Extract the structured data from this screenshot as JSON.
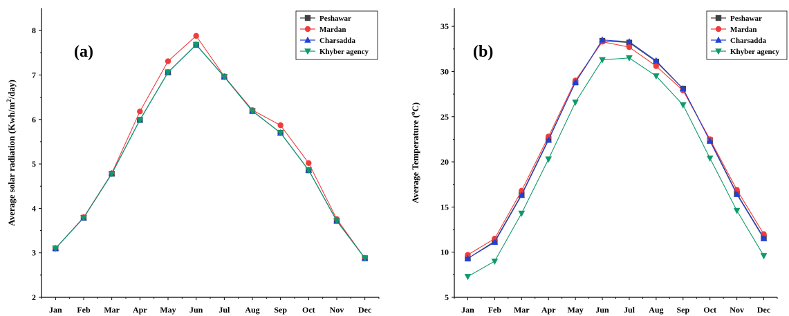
{
  "chart_data": [
    {
      "type": "line",
      "panel_label": "(a)",
      "title": "",
      "xlabel": "",
      "ylabel_prefix": "Average solar radiation (Kwh/m",
      "ylabel_sup": "2",
      "ylabel_suffix": "/day)",
      "categories": [
        "Jan",
        "Feb",
        "Mar",
        "Apr",
        "May",
        "Jun",
        "Jul",
        "Aug",
        "Sep",
        "Oct",
        "Nov",
        "Dec"
      ],
      "ylim": [
        2,
        8.5
      ],
      "yticks": [
        2,
        3,
        4,
        5,
        6,
        7,
        8
      ],
      "legend_position": "top-right",
      "series": [
        {
          "name": "Peshawar",
          "color": "#404040",
          "marker": "square",
          "values": [
            3.1,
            3.79,
            4.78,
            5.99,
            7.06,
            7.68,
            6.96,
            6.19,
            5.7,
            4.86,
            3.72,
            2.88
          ]
        },
        {
          "name": "Mardan",
          "color": "#f03c3c",
          "marker": "circle",
          "values": [
            3.1,
            3.8,
            4.79,
            6.18,
            7.31,
            7.88,
            6.97,
            6.21,
            5.87,
            5.02,
            3.76,
            2.88
          ]
        },
        {
          "name": "Charsadda",
          "color": "#2140d6",
          "marker": "triangle-up",
          "values": [
            3.1,
            3.79,
            4.78,
            5.99,
            7.06,
            7.68,
            6.96,
            6.19,
            5.7,
            4.86,
            3.72,
            2.88
          ]
        },
        {
          "name": "Khyber agency",
          "color": "#0e9a6a",
          "marker": "triangle-down",
          "values": [
            3.1,
            3.79,
            4.78,
            5.99,
            7.06,
            7.68,
            6.96,
            6.19,
            5.7,
            4.86,
            3.72,
            2.88
          ]
        }
      ]
    },
    {
      "type": "line",
      "panel_label": "(b)",
      "title": "",
      "xlabel": "",
      "ylabel_prefix": "Average Temperature (",
      "ylabel_sup": "o",
      "ylabel_suffix": "C)",
      "categories": [
        "Jan",
        "Feb",
        "Mar",
        "Apr",
        "May",
        "Jun",
        "Jul",
        "Aug",
        "Sep",
        "Oct",
        "Nov",
        "Dec"
      ],
      "ylim": [
        5,
        37
      ],
      "yticks": [
        5,
        10,
        15,
        20,
        25,
        30,
        35
      ],
      "legend_position": "top-right",
      "series": [
        {
          "name": "Peshawar",
          "color": "#404040",
          "marker": "square",
          "values": [
            9.3,
            11.2,
            16.4,
            22.5,
            28.8,
            33.4,
            33.2,
            31.1,
            28.1,
            22.4,
            16.5,
            11.6
          ]
        },
        {
          "name": "Mardan",
          "color": "#f03c3c",
          "marker": "circle",
          "values": [
            9.7,
            11.5,
            16.8,
            22.8,
            29.0,
            33.3,
            32.7,
            30.6,
            27.9,
            22.5,
            16.9,
            12.0
          ]
        },
        {
          "name": "Charsadda",
          "color": "#2140d6",
          "marker": "triangle-up",
          "values": [
            9.3,
            11.1,
            16.3,
            22.4,
            28.8,
            33.5,
            33.3,
            31.2,
            28.1,
            22.3,
            16.4,
            11.5
          ]
        },
        {
          "name": "Khyber agency",
          "color": "#0e9a6a",
          "marker": "triangle-down",
          "values": [
            7.3,
            9.0,
            14.3,
            20.3,
            26.6,
            31.3,
            31.5,
            29.5,
            26.3,
            20.4,
            14.6,
            9.6
          ]
        }
      ]
    }
  ]
}
